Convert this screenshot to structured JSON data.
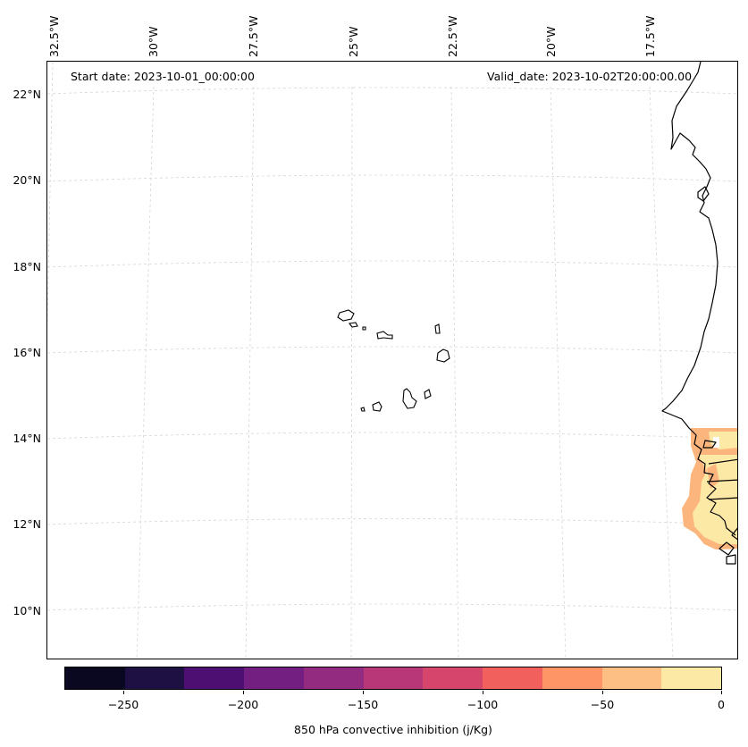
{
  "map": {
    "start_date": "Start date: 2023-10-01_00:00:00",
    "valid_date": "Valid_date: 2023-10-02T20:00:00.00",
    "lon_labels": [
      "32.5°W",
      "30°W",
      "27.5°W",
      "25°W",
      "22.5°W",
      "20°W",
      "17.5°W"
    ],
    "lat_labels": [
      "22°N",
      "20°N",
      "18°N",
      "16°N",
      "14°N",
      "12°N",
      "10°N"
    ],
    "features": [
      "Cape Verde islands",
      "West African coastline",
      "Senegal / Gambia / Guinea-Bissau borders"
    ]
  },
  "colorbar": {
    "label": "850 hPa convective inhibition (j/Kg)",
    "ticks": [
      "−250",
      "−200",
      "−150",
      "−100",
      "−50",
      "0"
    ],
    "range": [
      -275,
      0
    ],
    "step": 25,
    "colors": [
      "#0a0721",
      "#1f1044",
      "#4e0f72",
      "#721f81",
      "#932b80",
      "#b73779",
      "#d6456c",
      "#f1605d",
      "#fd9567",
      "#febf84",
      "#fde9a6"
    ]
  },
  "chart_data": {
    "type": "heatmap",
    "title": "",
    "variable": "850 hPa convective inhibition (j/Kg)",
    "region": "Cape Verde / West African coast",
    "lon_range": [
      -32.5,
      -16.0
    ],
    "lat_range": [
      9.0,
      22.5
    ],
    "shaded_area": "coastal Senegal, Gambia and Guinea-Bissau (about 11.5°N–14.3°N, 17.3°W–16°W)",
    "shaded_values_range": [
      -75,
      0
    ],
    "elsewhere": "no shading (values outside plotted levels)"
  }
}
